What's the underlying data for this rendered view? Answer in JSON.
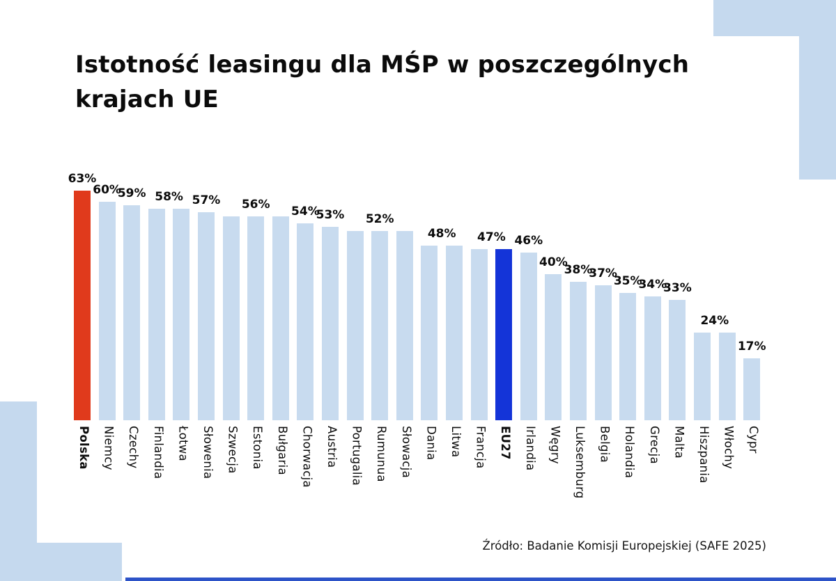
{
  "title": {
    "line1": "Istotność leasingu dla MŚP w poszczególnych",
    "line2": "krajach UE"
  },
  "source": "Źródło: Badanie Komisji Europejskiej (SAFE 2025)",
  "colors": {
    "bar_default": "#c8dbef",
    "bar_poland": "#e03a1c",
    "bar_eu27": "#1434d8",
    "decor_light_blue": "#c5d9ee",
    "bottom_strip_blue": "#2d53c8",
    "text": "#0b0b0b"
  },
  "chart_data": {
    "type": "bar",
    "title": "Istotność leasingu dla MŚP w poszczególnych krajach UE",
    "unit": "%",
    "ylim": [
      0,
      65
    ],
    "grid": false,
    "legend": null,
    "categories": [
      "Polska",
      "Niemcy",
      "Czechy",
      "Finlandia",
      "Łotwa",
      "Słowenia",
      "Szwecja",
      "Estonia",
      "Bułgaria",
      "Chorwacja",
      "Austria",
      "Portugalia",
      "Rumunua",
      "Słowacja",
      "Dania",
      "Litwa",
      "Francja",
      "EU27",
      "Irlandia",
      "Węgry",
      "Luksemburg",
      "Belgia",
      "Holandia",
      "Grecja",
      "Malta",
      "Hiszpania",
      "Włochy",
      "Cypr"
    ],
    "values": [
      63,
      60,
      59,
      58,
      58,
      57,
      56,
      56,
      56,
      54,
      53,
      52,
      52,
      52,
      48,
      48,
      47,
      47,
      46,
      40,
      38,
      37,
      35,
      34,
      33,
      24,
      24,
      17
    ],
    "emphasis": {
      "0": "poland",
      "17": "eu27"
    },
    "bold_categories": [
      0,
      17
    ],
    "value_labels": [
      {
        "text": "63%",
        "bars": [
          0
        ]
      },
      {
        "text": "60%",
        "bars": [
          1
        ]
      },
      {
        "text": "59%",
        "bars": [
          2
        ]
      },
      {
        "text": "58%",
        "bars": [
          3,
          4
        ]
      },
      {
        "text": "57%",
        "bars": [
          5
        ]
      },
      {
        "text": "56%",
        "bars": [
          7
        ]
      },
      {
        "text": "54%",
        "bars": [
          9
        ]
      },
      {
        "text": "53%",
        "bars": [
          10
        ]
      },
      {
        "text": "52%",
        "bars": [
          12
        ]
      },
      {
        "text": "48%",
        "bars": [
          14,
          15
        ]
      },
      {
        "text": "47%",
        "bars": [
          16,
          17
        ]
      },
      {
        "text": "46%",
        "bars": [
          18
        ]
      },
      {
        "text": "40%",
        "bars": [
          19
        ]
      },
      {
        "text": "38%",
        "bars": [
          20
        ]
      },
      {
        "text": "37%",
        "bars": [
          21
        ]
      },
      {
        "text": "35%",
        "bars": [
          22
        ]
      },
      {
        "text": "34%",
        "bars": [
          23
        ]
      },
      {
        "text": "33%",
        "bars": [
          24
        ]
      },
      {
        "text": "24%",
        "bars": [
          25,
          26
        ]
      },
      {
        "text": "17%",
        "bars": [
          27
        ]
      }
    ]
  }
}
